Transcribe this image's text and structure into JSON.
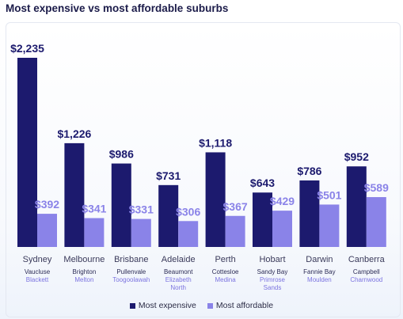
{
  "page": {
    "title": "Most expensive vs most affordable suburbs"
  },
  "chart_data": {
    "type": "bar",
    "title": "Most expensive vs most affordable suburbs",
    "categories": [
      "Sydney",
      "Melbourne",
      "Brisbane",
      "Adelaide",
      "Perth",
      "Hobart",
      "Darwin",
      "Canberra"
    ],
    "expensive_suburbs": [
      [
        "Vaucluse"
      ],
      [
        "Brighton"
      ],
      [
        "Pullenvale"
      ],
      [
        "Beaumont"
      ],
      [
        "Cottesloe"
      ],
      [
        "Sandy Bay"
      ],
      [
        "Fannie Bay"
      ],
      [
        "Campbell"
      ]
    ],
    "affordable_suburbs": [
      [
        "Blackett"
      ],
      [
        "Melton"
      ],
      [
        "Toogoolawah"
      ],
      [
        "Elizabeth",
        "North"
      ],
      [
        "Medina"
      ],
      [
        "Primrose",
        "Sands"
      ],
      [
        "Moulden"
      ],
      [
        "Charnwood"
      ]
    ],
    "series": [
      {
        "name": "Most expensive",
        "color": "#1c1a6e",
        "values": [
          2235,
          1226,
          986,
          731,
          1118,
          643,
          786,
          952
        ],
        "labels": [
          "$2,235",
          "$1,226",
          "$986",
          "$731",
          "$1,118",
          "$643",
          "$786",
          "$952"
        ]
      },
      {
        "name": "Most affordable",
        "color": "#8a83e8",
        "values": [
          392,
          341,
          331,
          306,
          367,
          429,
          501,
          589
        ],
        "labels": [
          "$392",
          "$341",
          "$331",
          "$306",
          "$367",
          "$429",
          "$501",
          "$589"
        ]
      }
    ],
    "legend_position": "bottom",
    "grid": false
  }
}
